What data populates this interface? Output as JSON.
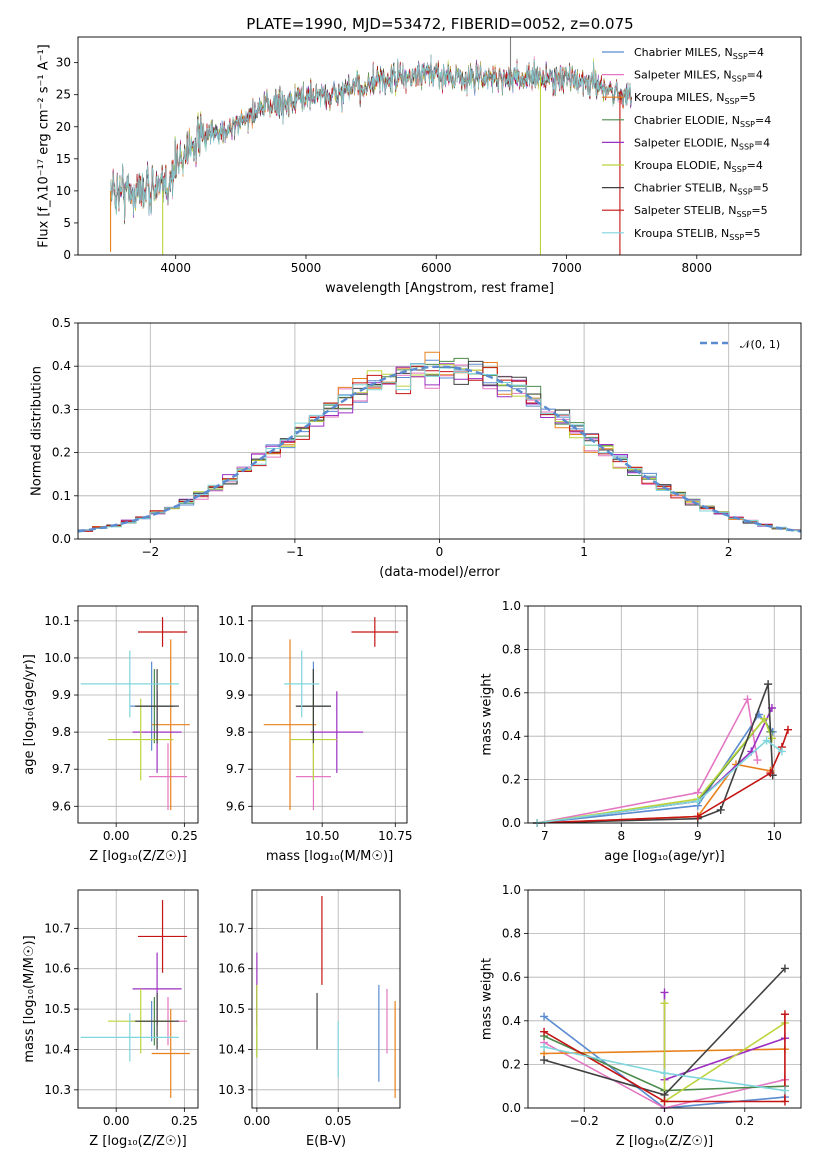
{
  "figure": {
    "title": "PLATE=1990, MJD=53472, FIBERID=0052, z=0.075"
  },
  "models": [
    {
      "name": "Chabrier MILES",
      "nssp": "4",
      "color": "#5b8bd0"
    },
    {
      "name": "Salpeter MILES",
      "nssp": "4",
      "color": "#e377c2"
    },
    {
      "name": "Kroupa MILES",
      "nssp": "5",
      "color": "#e8811c"
    },
    {
      "name": "Chabrier ELODIE",
      "nssp": "4",
      "color": "#4c8a4c"
    },
    {
      "name": "Salpeter ELODIE",
      "nssp": "4",
      "color": "#9b30c2"
    },
    {
      "name": "Kroupa ELODIE",
      "nssp": "4",
      "color": "#bcd43c"
    },
    {
      "name": "Chabrier STELIB",
      "nssp": "5",
      "color": "#404040"
    },
    {
      "name": "Salpeter STELIB",
      "nssp": "5",
      "color": "#c41414"
    },
    {
      "name": "Kroupa STELIB",
      "nssp": "5",
      "color": "#7fd6dc"
    }
  ],
  "chart_data": [
    {
      "id": "spectrum",
      "type": "line",
      "xlabel": "wavelength [Angstrom, rest frame]",
      "ylabel": "Flux [f_λ10⁻¹⁷ erg cm⁻² s⁻¹ A⁻¹]",
      "xlim": [
        3250,
        8800
      ],
      "ylim": [
        0,
        34
      ],
      "xticks": [
        "4000",
        "5000",
        "6000",
        "7000",
        "8000"
      ],
      "yticks": [
        "0",
        "5",
        "10",
        "15",
        "20",
        "25",
        "30"
      ],
      "grid": false,
      "legend": "top-right",
      "series_note": "9 model fits overplotted on the observed spectrum",
      "spectrum_anchors": [
        [
          3500,
          10
        ],
        [
          3600,
          10.5
        ],
        [
          3700,
          10
        ],
        [
          3800,
          11
        ],
        [
          3900,
          10
        ],
        [
          4000,
          14
        ],
        [
          4100,
          17
        ],
        [
          4200,
          18.5
        ],
        [
          4300,
          19
        ],
        [
          4400,
          20
        ],
        [
          4500,
          21
        ],
        [
          4600,
          22.5
        ],
        [
          4700,
          23.5
        ],
        [
          4800,
          24
        ],
        [
          4900,
          24.5
        ],
        [
          5000,
          25
        ],
        [
          5100,
          25.5
        ],
        [
          5200,
          25
        ],
        [
          5300,
          26
        ],
        [
          5400,
          26.5
        ],
        [
          5500,
          27
        ],
        [
          5600,
          27.5
        ],
        [
          5700,
          28
        ],
        [
          5800,
          28
        ],
        [
          5900,
          28.5
        ],
        [
          6000,
          28.5
        ],
        [
          6100,
          28.5
        ],
        [
          6200,
          28
        ],
        [
          6300,
          28
        ],
        [
          6400,
          28
        ],
        [
          6500,
          28
        ],
        [
          6600,
          28
        ],
        [
          6700,
          28
        ],
        [
          6800,
          28
        ],
        [
          6900,
          28
        ],
        [
          7000,
          28
        ],
        [
          7100,
          27.5
        ],
        [
          7200,
          27
        ],
        [
          7300,
          26.5
        ],
        [
          7400,
          25.5
        ],
        [
          7500,
          25
        ]
      ],
      "outliers": [
        [
          3500,
          0.5
        ],
        [
          3900,
          0
        ],
        [
          6800,
          0
        ],
        [
          7410,
          0
        ],
        [
          6570,
          35
        ]
      ]
    },
    {
      "id": "residuals",
      "type": "histogram",
      "xlabel": "(data-model)/error",
      "ylabel": "Normed distribution",
      "xlim": [
        -2.5,
        2.5
      ],
      "ylim": [
        0,
        0.5
      ],
      "xticks": [
        "−2",
        "−1",
        "0",
        "1",
        "2"
      ],
      "yticks": [
        "0.0",
        "0.1",
        "0.2",
        "0.3",
        "0.4",
        "0.5"
      ],
      "grid": true,
      "legend": "top-right",
      "reference_curve": "𝒩(0, 1)",
      "bin_width": 0.1
    },
    {
      "id": "age-vs-Z",
      "type": "errorbar",
      "xlabel": "Z [log₁₀(Z/Z☉)]",
      "ylabel": "age  [log₁₀(age/yr)]",
      "xlim": [
        -0.14,
        0.3
      ],
      "ylim": [
        9.555,
        10.14
      ],
      "xticks": [
        "0.00",
        "0.25"
      ],
      "yticks": [
        "9.6",
        "9.7",
        "9.8",
        "9.9",
        "10.0",
        "10.1"
      ],
      "grid": true,
      "points": [
        {
          "x": 0.13,
          "xerr": 0.08,
          "y": 9.87,
          "yerr": 0.12
        },
        {
          "x": 0.19,
          "xerr": 0.07,
          "y": 9.68,
          "yerr": 0.09
        },
        {
          "x": 0.2,
          "xerr": 0.07,
          "y": 9.82,
          "yerr": 0.23
        },
        {
          "x": 0.14,
          "xerr": 0.07,
          "y": 9.87,
          "yerr": 0.1
        },
        {
          "x": 0.15,
          "xerr": 0.09,
          "y": 9.8,
          "yerr": 0.11
        },
        {
          "x": 0.09,
          "xerr": 0.12,
          "y": 9.78,
          "yerr": 0.11
        },
        {
          "x": 0.15,
          "xerr": 0.08,
          "y": 9.87,
          "yerr": 0.1
        },
        {
          "x": 0.17,
          "xerr": 0.09,
          "y": 10.07,
          "yerr": 0.04
        },
        {
          "x": 0.05,
          "xerr": 0.18,
          "y": 9.93,
          "yerr": 0.09
        }
      ]
    },
    {
      "id": "age-vs-mass",
      "type": "errorbar",
      "xlabel": "mass [log₁₀(M/M☉)]",
      "ylabel": "",
      "xlim": [
        10.26,
        10.79
      ],
      "ylim": [
        9.555,
        10.14
      ],
      "xticks": [
        "10.50",
        "10.75"
      ],
      "yticks": [
        "9.6",
        "9.7",
        "9.8",
        "9.9",
        "10.0",
        "10.1"
      ],
      "grid": true,
      "points": [
        {
          "x": 10.47,
          "xerr": 0.05,
          "y": 9.87,
          "yerr": 0.12
        },
        {
          "x": 10.47,
          "xerr": 0.06,
          "y": 9.68,
          "yerr": 0.09
        },
        {
          "x": 10.39,
          "xerr": 0.09,
          "y": 9.82,
          "yerr": 0.23
        },
        {
          "x": 10.47,
          "xerr": 0.06,
          "y": 9.87,
          "yerr": 0.1
        },
        {
          "x": 10.55,
          "xerr": 0.09,
          "y": 9.8,
          "yerr": 0.11
        },
        {
          "x": 10.47,
          "xerr": 0.08,
          "y": 9.78,
          "yerr": 0.11
        },
        {
          "x": 10.47,
          "xerr": 0.06,
          "y": 9.87,
          "yerr": 0.1
        },
        {
          "x": 10.68,
          "xerr": 0.08,
          "y": 10.07,
          "yerr": 0.04
        },
        {
          "x": 10.43,
          "xerr": 0.06,
          "y": 9.93,
          "yerr": 0.09
        }
      ]
    },
    {
      "id": "weight-vs-age",
      "type": "line",
      "xlabel": "age  [log₁₀(age/yr)]",
      "ylabel": "mass weight",
      "xlim": [
        6.78,
        10.35
      ],
      "ylim": [
        0,
        1
      ],
      "xticks": [
        "7",
        "8",
        "9",
        "10"
      ],
      "yticks": [
        "0.0",
        "0.2",
        "0.4",
        "0.6",
        "0.8",
        "1.0"
      ],
      "grid": true,
      "series": [
        {
          "values": [
            [
              6.9,
              0.0
            ],
            [
              9.0,
              0.08
            ],
            [
              9.8,
              0.5
            ],
            [
              9.98,
              0.42
            ]
          ]
        },
        {
          "values": [
            [
              6.9,
              0.0
            ],
            [
              9.0,
              0.14
            ],
            [
              9.65,
              0.57
            ],
            [
              9.78,
              0.29
            ]
          ]
        },
        {
          "values": [
            [
              6.9,
              0.0
            ],
            [
              9.0,
              0.03
            ],
            [
              9.5,
              0.27
            ],
            [
              9.95,
              0.24
            ]
          ]
        },
        {
          "values": [
            [
              6.9,
              0.0
            ],
            [
              9.0,
              0.1
            ],
            [
              9.87,
              0.48
            ],
            [
              9.95,
              0.42
            ]
          ]
        },
        {
          "values": [
            [
              6.9,
              0.0
            ],
            [
              9.0,
              0.1
            ],
            [
              9.7,
              0.33
            ],
            [
              9.97,
              0.53
            ]
          ]
        },
        {
          "values": [
            [
              6.9,
              0.0
            ],
            [
              9.0,
              0.11
            ],
            [
              9.87,
              0.48
            ],
            [
              9.97,
              0.39
            ]
          ]
        },
        {
          "values": [
            [
              6.9,
              0.0
            ],
            [
              9.0,
              0.02
            ],
            [
              9.3,
              0.06
            ],
            [
              9.92,
              0.64
            ],
            [
              9.98,
              0.22
            ]
          ]
        },
        {
          "values": [
            [
              6.9,
              0.0
            ],
            [
              9.0,
              0.03
            ],
            [
              9.95,
              0.23
            ],
            [
              10.1,
              0.35
            ],
            [
              10.18,
              0.43
            ]
          ]
        },
        {
          "values": [
            [
              6.9,
              0.0
            ],
            [
              9.0,
              0.1
            ],
            [
              9.9,
              0.38
            ],
            [
              10.1,
              0.33
            ]
          ]
        }
      ]
    },
    {
      "id": "mass-vs-Z",
      "type": "errorbar",
      "xlabel": "Z [log₁₀(Z/Z☉)]",
      "ylabel": "mass [log₁₀(M/M☉)]",
      "xlim": [
        -0.14,
        0.3
      ],
      "ylim": [
        10.255,
        10.795
      ],
      "xticks": [
        "0.00",
        "0.25"
      ],
      "yticks": [
        "10.3",
        "10.4",
        "10.5",
        "10.6",
        "10.7"
      ],
      "grid": true,
      "points": [
        {
          "x": 0.13,
          "xerr": 0.08,
          "y": 10.47,
          "yerr": 0.05
        },
        {
          "x": 0.19,
          "xerr": 0.07,
          "y": 10.47,
          "yerr": 0.06
        },
        {
          "x": 0.2,
          "xerr": 0.07,
          "y": 10.39,
          "yerr": 0.11
        },
        {
          "x": 0.14,
          "xerr": 0.07,
          "y": 10.47,
          "yerr": 0.06
        },
        {
          "x": 0.15,
          "xerr": 0.09,
          "y": 10.55,
          "yerr": 0.09
        },
        {
          "x": 0.09,
          "xerr": 0.12,
          "y": 10.47,
          "yerr": 0.08
        },
        {
          "x": 0.15,
          "xerr": 0.08,
          "y": 10.47,
          "yerr": 0.07
        },
        {
          "x": 0.17,
          "xerr": 0.09,
          "y": 10.68,
          "yerr": 0.09
        },
        {
          "x": 0.05,
          "xerr": 0.18,
          "y": 10.43,
          "yerr": 0.06
        }
      ]
    },
    {
      "id": "mass-vs-ebv",
      "type": "errorbar",
      "xlabel": "E(B-V)",
      "ylabel": "",
      "xlim": [
        -0.003,
        0.088
      ],
      "ylim": [
        10.255,
        10.795
      ],
      "xticks": [
        "0.00",
        "0.05"
      ],
      "yticks": [
        "10.3",
        "10.4",
        "10.5",
        "10.6",
        "10.7"
      ],
      "grid": true,
      "points": [
        {
          "x": 0.075,
          "y": 10.44,
          "yerr": 0.12
        },
        {
          "x": 0.08,
          "y": 10.47,
          "yerr": 0.08
        },
        {
          "x": 0.085,
          "y": 10.4,
          "yerr": 0.12
        },
        {
          "x": 0.0,
          "y": 10.47,
          "yerr": 0.09
        },
        {
          "x": 0.0,
          "y": 10.55,
          "yerr": 0.09
        },
        {
          "x": 0.0,
          "y": 10.47,
          "yerr": 0.09
        },
        {
          "x": 0.037,
          "y": 10.47,
          "yerr": 0.07
        },
        {
          "x": 0.04,
          "y": 10.67,
          "yerr": 0.11
        },
        {
          "x": 0.05,
          "y": 10.4,
          "yerr": 0.07
        }
      ]
    },
    {
      "id": "weight-vs-Z",
      "type": "line",
      "xlabel": "Z [log₁₀(Z/Z☉)]",
      "ylabel": "mass weight",
      "xlim": [
        -0.34,
        0.34
      ],
      "ylim": [
        0,
        1
      ],
      "xticks": [
        "−0.2",
        "0.0",
        "0.2"
      ],
      "yticks": [
        "0.0",
        "0.2",
        "0.4",
        "0.6",
        "0.8",
        "1.0"
      ],
      "grid": true,
      "series": [
        {
          "values": [
            [
              -0.3,
              0.42
            ],
            [
              0.0,
              0.0
            ],
            [
              0.3,
              0.05
            ]
          ]
        },
        {
          "values": [
            [
              -0.3,
              0.3
            ],
            [
              0.0,
              0.0
            ],
            [
              0.3,
              0.13
            ]
          ]
        },
        {
          "values": [
            [
              -0.3,
              0.25
            ],
            [
              0.3,
              0.27
            ]
          ]
        },
        {
          "values": [
            [
              -0.3,
              0.33
            ],
            [
              0.0,
              0.08
            ],
            [
              0.3,
              0.1
            ]
          ]
        },
        {
          "values": [
            [
              0.0,
              0.53
            ],
            [
              0.0,
              0.13
            ],
            [
              0.3,
              0.32
            ]
          ]
        },
        {
          "values": [
            [
              0.0,
              0.48
            ],
            [
              0.0,
              0.03
            ],
            [
              0.3,
              0.39
            ]
          ]
        },
        {
          "values": [
            [
              -0.3,
              0.22
            ],
            [
              0.0,
              0.06
            ],
            [
              0.3,
              0.64
            ]
          ]
        },
        {
          "values": [
            [
              -0.3,
              0.35
            ],
            [
              0.0,
              0.03
            ],
            [
              0.3,
              0.03
            ],
            [
              0.3,
              0.43
            ]
          ]
        },
        {
          "values": [
            [
              -0.3,
              0.28
            ],
            [
              0.0,
              0.16
            ],
            [
              0.3,
              0.08
            ]
          ]
        }
      ]
    }
  ]
}
